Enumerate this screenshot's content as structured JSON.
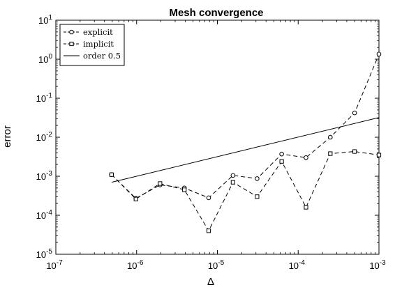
{
  "chart_data": {
    "type": "line",
    "title": "Mesh convergence",
    "xlabel": "Δ",
    "ylabel": "error",
    "xscale": "log",
    "yscale": "log",
    "xlim": [
      1e-07,
      0.001
    ],
    "ylim": [
      1e-05,
      10
    ],
    "x_ticks": [
      {
        "base": "10",
        "exp": "-7"
      },
      {
        "base": "10",
        "exp": "-6"
      },
      {
        "base": "10",
        "exp": "-5"
      },
      {
        "base": "10",
        "exp": "-4"
      },
      {
        "base": "10",
        "exp": "-3"
      }
    ],
    "y_ticks": [
      {
        "base": "10",
        "exp": "-5"
      },
      {
        "base": "10",
        "exp": "-4"
      },
      {
        "base": "10",
        "exp": "-3"
      },
      {
        "base": "10",
        "exp": "-2"
      },
      {
        "base": "10",
        "exp": "-1"
      },
      {
        "base": "10",
        "exp": "0"
      },
      {
        "base": "10",
        "exp": "1"
      }
    ],
    "grid": false,
    "legend_position": "top-left",
    "series": [
      {
        "name": "explicit",
        "color": "#000000",
        "linestyle": "dashed",
        "marker": "circle",
        "x": [
          4.9e-07,
          9.8e-07,
          1.95e-06,
          3.9e-06,
          7.8e-06,
          1.56e-05,
          3.1e-05,
          6.25e-05,
          0.000125,
          0.00025,
          0.0005,
          0.001
        ],
        "y": [
          0.0011,
          0.00027,
          0.0006,
          0.0005,
          0.00028,
          0.00105,
          0.00087,
          0.0037,
          0.003,
          0.01,
          0.042,
          1.35
        ]
      },
      {
        "name": "implicit",
        "color": "#000000",
        "linestyle": "dashed",
        "marker": "square",
        "x": [
          4.9e-07,
          9.8e-07,
          1.95e-06,
          3.9e-06,
          7.8e-06,
          1.56e-05,
          3.1e-05,
          6.25e-05,
          0.000125,
          0.00025,
          0.0005,
          0.001
        ],
        "y": [
          0.0011,
          0.00026,
          0.00065,
          0.00045,
          4e-05,
          0.0007,
          0.0003,
          0.0024,
          0.00016,
          0.0038,
          0.0043,
          0.0035
        ]
      },
      {
        "name": "order 0.5",
        "color": "#000000",
        "linestyle": "solid",
        "marker": "none",
        "x": [
          4.9e-07,
          0.001
        ],
        "y": [
          0.0007,
          0.032
        ]
      }
    ]
  }
}
